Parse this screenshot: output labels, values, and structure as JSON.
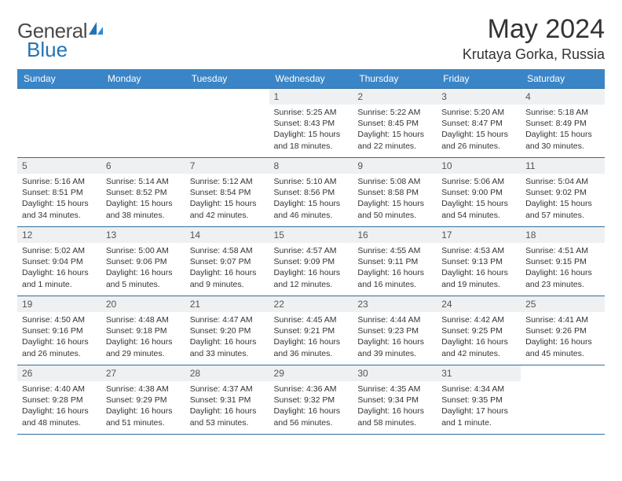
{
  "brand": {
    "word1": "General",
    "word2": "Blue"
  },
  "title": "May 2024",
  "location": "Krutaya Gorka, Russia",
  "colors": {
    "header_bg": "#3a85c7",
    "header_text": "#ffffff",
    "daynum_bg": "#eef0f1",
    "border": "#2f6ea0",
    "brand_accent": "#2374b5"
  },
  "weekdays": [
    "Sunday",
    "Monday",
    "Tuesday",
    "Wednesday",
    "Thursday",
    "Friday",
    "Saturday"
  ],
  "weeks": [
    [
      {
        "n": "",
        "sr": "",
        "ss": "",
        "dl": ""
      },
      {
        "n": "",
        "sr": "",
        "ss": "",
        "dl": ""
      },
      {
        "n": "",
        "sr": "",
        "ss": "",
        "dl": ""
      },
      {
        "n": "1",
        "sr": "Sunrise: 5:25 AM",
        "ss": "Sunset: 8:43 PM",
        "dl": "Daylight: 15 hours and 18 minutes."
      },
      {
        "n": "2",
        "sr": "Sunrise: 5:22 AM",
        "ss": "Sunset: 8:45 PM",
        "dl": "Daylight: 15 hours and 22 minutes."
      },
      {
        "n": "3",
        "sr": "Sunrise: 5:20 AM",
        "ss": "Sunset: 8:47 PM",
        "dl": "Daylight: 15 hours and 26 minutes."
      },
      {
        "n": "4",
        "sr": "Sunrise: 5:18 AM",
        "ss": "Sunset: 8:49 PM",
        "dl": "Daylight: 15 hours and 30 minutes."
      }
    ],
    [
      {
        "n": "5",
        "sr": "Sunrise: 5:16 AM",
        "ss": "Sunset: 8:51 PM",
        "dl": "Daylight: 15 hours and 34 minutes."
      },
      {
        "n": "6",
        "sr": "Sunrise: 5:14 AM",
        "ss": "Sunset: 8:52 PM",
        "dl": "Daylight: 15 hours and 38 minutes."
      },
      {
        "n": "7",
        "sr": "Sunrise: 5:12 AM",
        "ss": "Sunset: 8:54 PM",
        "dl": "Daylight: 15 hours and 42 minutes."
      },
      {
        "n": "8",
        "sr": "Sunrise: 5:10 AM",
        "ss": "Sunset: 8:56 PM",
        "dl": "Daylight: 15 hours and 46 minutes."
      },
      {
        "n": "9",
        "sr": "Sunrise: 5:08 AM",
        "ss": "Sunset: 8:58 PM",
        "dl": "Daylight: 15 hours and 50 minutes."
      },
      {
        "n": "10",
        "sr": "Sunrise: 5:06 AM",
        "ss": "Sunset: 9:00 PM",
        "dl": "Daylight: 15 hours and 54 minutes."
      },
      {
        "n": "11",
        "sr": "Sunrise: 5:04 AM",
        "ss": "Sunset: 9:02 PM",
        "dl": "Daylight: 15 hours and 57 minutes."
      }
    ],
    [
      {
        "n": "12",
        "sr": "Sunrise: 5:02 AM",
        "ss": "Sunset: 9:04 PM",
        "dl": "Daylight: 16 hours and 1 minute."
      },
      {
        "n": "13",
        "sr": "Sunrise: 5:00 AM",
        "ss": "Sunset: 9:06 PM",
        "dl": "Daylight: 16 hours and 5 minutes."
      },
      {
        "n": "14",
        "sr": "Sunrise: 4:58 AM",
        "ss": "Sunset: 9:07 PM",
        "dl": "Daylight: 16 hours and 9 minutes."
      },
      {
        "n": "15",
        "sr": "Sunrise: 4:57 AM",
        "ss": "Sunset: 9:09 PM",
        "dl": "Daylight: 16 hours and 12 minutes."
      },
      {
        "n": "16",
        "sr": "Sunrise: 4:55 AM",
        "ss": "Sunset: 9:11 PM",
        "dl": "Daylight: 16 hours and 16 minutes."
      },
      {
        "n": "17",
        "sr": "Sunrise: 4:53 AM",
        "ss": "Sunset: 9:13 PM",
        "dl": "Daylight: 16 hours and 19 minutes."
      },
      {
        "n": "18",
        "sr": "Sunrise: 4:51 AM",
        "ss": "Sunset: 9:15 PM",
        "dl": "Daylight: 16 hours and 23 minutes."
      }
    ],
    [
      {
        "n": "19",
        "sr": "Sunrise: 4:50 AM",
        "ss": "Sunset: 9:16 PM",
        "dl": "Daylight: 16 hours and 26 minutes."
      },
      {
        "n": "20",
        "sr": "Sunrise: 4:48 AM",
        "ss": "Sunset: 9:18 PM",
        "dl": "Daylight: 16 hours and 29 minutes."
      },
      {
        "n": "21",
        "sr": "Sunrise: 4:47 AM",
        "ss": "Sunset: 9:20 PM",
        "dl": "Daylight: 16 hours and 33 minutes."
      },
      {
        "n": "22",
        "sr": "Sunrise: 4:45 AM",
        "ss": "Sunset: 9:21 PM",
        "dl": "Daylight: 16 hours and 36 minutes."
      },
      {
        "n": "23",
        "sr": "Sunrise: 4:44 AM",
        "ss": "Sunset: 9:23 PM",
        "dl": "Daylight: 16 hours and 39 minutes."
      },
      {
        "n": "24",
        "sr": "Sunrise: 4:42 AM",
        "ss": "Sunset: 9:25 PM",
        "dl": "Daylight: 16 hours and 42 minutes."
      },
      {
        "n": "25",
        "sr": "Sunrise: 4:41 AM",
        "ss": "Sunset: 9:26 PM",
        "dl": "Daylight: 16 hours and 45 minutes."
      }
    ],
    [
      {
        "n": "26",
        "sr": "Sunrise: 4:40 AM",
        "ss": "Sunset: 9:28 PM",
        "dl": "Daylight: 16 hours and 48 minutes."
      },
      {
        "n": "27",
        "sr": "Sunrise: 4:38 AM",
        "ss": "Sunset: 9:29 PM",
        "dl": "Daylight: 16 hours and 51 minutes."
      },
      {
        "n": "28",
        "sr": "Sunrise: 4:37 AM",
        "ss": "Sunset: 9:31 PM",
        "dl": "Daylight: 16 hours and 53 minutes."
      },
      {
        "n": "29",
        "sr": "Sunrise: 4:36 AM",
        "ss": "Sunset: 9:32 PM",
        "dl": "Daylight: 16 hours and 56 minutes."
      },
      {
        "n": "30",
        "sr": "Sunrise: 4:35 AM",
        "ss": "Sunset: 9:34 PM",
        "dl": "Daylight: 16 hours and 58 minutes."
      },
      {
        "n": "31",
        "sr": "Sunrise: 4:34 AM",
        "ss": "Sunset: 9:35 PM",
        "dl": "Daylight: 17 hours and 1 minute."
      },
      {
        "n": "",
        "sr": "",
        "ss": "",
        "dl": ""
      }
    ]
  ]
}
